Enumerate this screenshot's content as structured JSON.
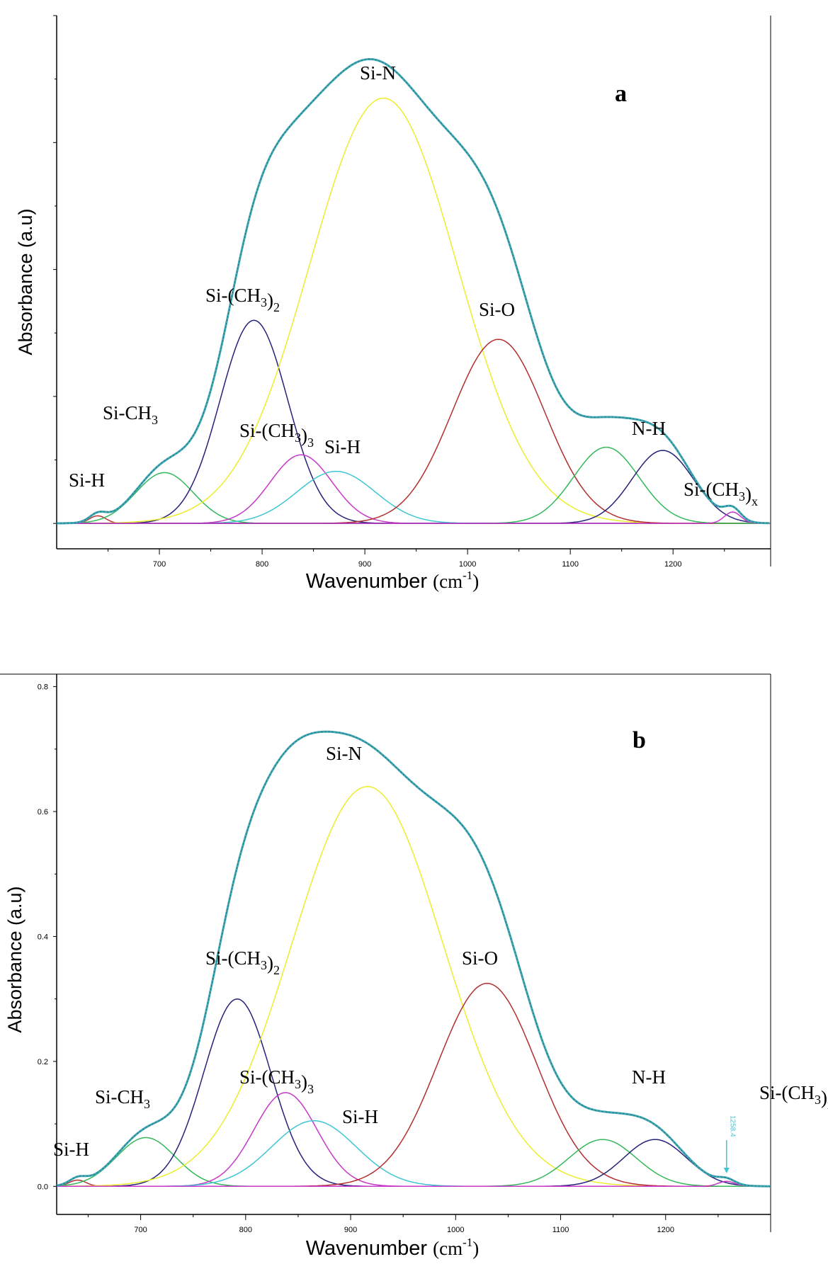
{
  "chart_data": [
    {
      "type": "line",
      "panel_label": "a",
      "xlabel_main": "Wavenumber",
      "xlabel_unit_base": "(cm",
      "xlabel_unit_exp": "-1",
      "xlabel_unit_end": ")",
      "ylabel": "Absorbance (a.u)",
      "xlim": [
        600,
        1295
      ],
      "ylim": [
        -0.04,
        0.8
      ],
      "x_ticks": [
        700,
        800,
        900,
        1000,
        1100,
        1200
      ],
      "y_tick_values": [
        0.0,
        0.2,
        0.4,
        0.6,
        0.8
      ],
      "y_tick_labels_visible": false,
      "envelope_color": "#3fa7b2",
      "baseline_color": "#d23c3c",
      "series": [
        {
          "label": "Si-H",
          "center": 640,
          "amplitude": 0.012,
          "sigma": 8,
          "color": "#b33434"
        },
        {
          "label": "Si-CH3",
          "center": 705,
          "amplitude": 0.08,
          "sigma": 28,
          "color": "#33b85a"
        },
        {
          "label": "Si-(CH3)2",
          "center": 792,
          "amplitude": 0.32,
          "sigma": 33,
          "color": "#24227a"
        },
        {
          "label": "Si-(CH3)3",
          "center": 838,
          "amplitude": 0.108,
          "sigma": 30,
          "color": "#c837c8"
        },
        {
          "label": "Si-H",
          "center": 872,
          "amplitude": 0.082,
          "sigma": 38,
          "color": "#3fc6d3"
        },
        {
          "label": "Si-N",
          "center": 918,
          "amplitude": 0.67,
          "sigma": 72,
          "color": "#eded2e"
        },
        {
          "label": "Si-O",
          "center": 1030,
          "amplitude": 0.29,
          "sigma": 45,
          "color": "#b22f2f"
        },
        {
          "label": "",
          "center": 1135,
          "amplitude": 0.12,
          "sigma": 32,
          "color": "#33b85a"
        },
        {
          "label": "N-H",
          "center": 1190,
          "amplitude": 0.115,
          "sigma": 30,
          "color": "#24227a"
        },
        {
          "label": "Si-(CH3)x",
          "center": 1258,
          "amplitude": 0.018,
          "sigma": 8,
          "color": "#c837c8"
        }
      ],
      "annotations": [
        {
          "base": "Si-H",
          "sub": "",
          "after": ""
        },
        {
          "base": "Si-CH",
          "sub": "3",
          "after": ""
        },
        {
          "base": "Si-(CH",
          "sub": "3",
          "after": ")",
          "sub2": "2"
        },
        {
          "base": "Si-(CH",
          "sub": "3",
          "after": ")",
          "sub2": "3"
        },
        {
          "base": "Si-H",
          "sub": "",
          "after": ""
        },
        {
          "base": "Si-N",
          "sub": "",
          "after": ""
        },
        {
          "base": "Si-O",
          "sub": "",
          "after": ""
        },
        {
          "base": "N-H",
          "sub": "",
          "after": ""
        },
        {
          "base": "Si-(CH",
          "sub": "3",
          "after": ")",
          "sub2": "x"
        }
      ]
    },
    {
      "type": "line",
      "panel_label": "b",
      "xlabel_main": "Wavenumber",
      "xlabel_unit_base": "(cm",
      "xlabel_unit_exp": "-1",
      "xlabel_unit_end": ")",
      "ylabel": "Absorbance (a.u)",
      "xlim": [
        620,
        1300
      ],
      "ylim": [
        -0.045,
        0.82
      ],
      "x_ticks": [
        700,
        800,
        900,
        1000,
        1100,
        1200
      ],
      "y_ticks": [
        "0.0",
        "0.2",
        "0.4",
        "0.6",
        "0.8"
      ],
      "y_tick_values": [
        0.0,
        0.2,
        0.4,
        0.6,
        0.8
      ],
      "marker_label": "1258.4",
      "envelope_color": "#3fa7b2",
      "baseline_color": "#d23c3c",
      "series": [
        {
          "label": "Si-H",
          "center": 640,
          "amplitude": 0.01,
          "sigma": 8,
          "color": "#b33434"
        },
        {
          "label": "Si-CH3",
          "center": 705,
          "amplitude": 0.078,
          "sigma": 28,
          "color": "#33b85a"
        },
        {
          "label": "Si-(CH3)2",
          "center": 792,
          "amplitude": 0.3,
          "sigma": 32,
          "color": "#24227a"
        },
        {
          "label": "Si-(CH3)3",
          "center": 838,
          "amplitude": 0.15,
          "sigma": 30,
          "color": "#c837c8"
        },
        {
          "label": "Si-H",
          "center": 865,
          "amplitude": 0.105,
          "sigma": 40,
          "color": "#3fc6d3"
        },
        {
          "label": "Si-N",
          "center": 916,
          "amplitude": 0.64,
          "sigma": 72,
          "color": "#eded2e"
        },
        {
          "label": "Si-O",
          "center": 1030,
          "amplitude": 0.325,
          "sigma": 47,
          "color": "#b22f2f"
        },
        {
          "label": "",
          "center": 1140,
          "amplitude": 0.075,
          "sigma": 32,
          "color": "#33b85a"
        },
        {
          "label": "N-H",
          "center": 1190,
          "amplitude": 0.075,
          "sigma": 30,
          "color": "#24227a"
        },
        {
          "label": "Si-(CH3)x",
          "center": 1258,
          "amplitude": 0.008,
          "sigma": 8,
          "color": "#c837c8"
        }
      ],
      "annotations": [
        {
          "base": "Si-H",
          "sub": "",
          "after": ""
        },
        {
          "base": "Si-CH",
          "sub": "3",
          "after": ""
        },
        {
          "base": "Si-(CH",
          "sub": "3",
          "after": ")",
          "sub2": "2"
        },
        {
          "base": "Si-(CH",
          "sub": "3",
          "after": ")",
          "sub2": "3"
        },
        {
          "base": "Si-H",
          "sub": "",
          "after": ""
        },
        {
          "base": "Si-N",
          "sub": "",
          "after": ""
        },
        {
          "base": "Si-O",
          "sub": "",
          "after": ""
        },
        {
          "base": "N-H",
          "sub": "",
          "after": ""
        },
        {
          "base": "Si-(CH",
          "sub": "3",
          "after": ")",
          "sub2": "x"
        }
      ]
    }
  ]
}
